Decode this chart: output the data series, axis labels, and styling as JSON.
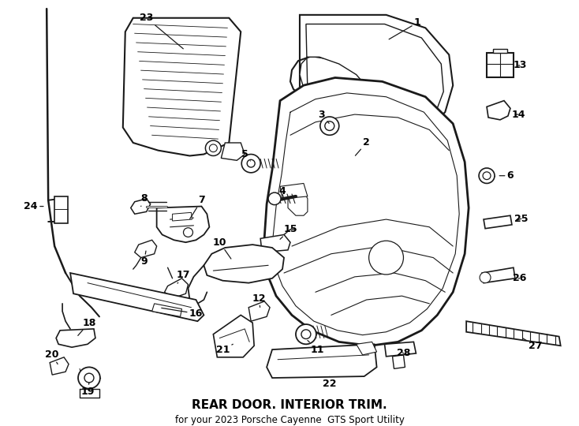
{
  "title": "REAR DOOR. INTERIOR TRIM.",
  "subtitle": "for your 2023 Porsche Cayenne  GTS Sport Utility",
  "background_color": "#ffffff",
  "line_color": "#1a1a1a",
  "text_color": "#000000",
  "figsize": [
    7.34,
    5.4
  ],
  "dpi": 100
}
